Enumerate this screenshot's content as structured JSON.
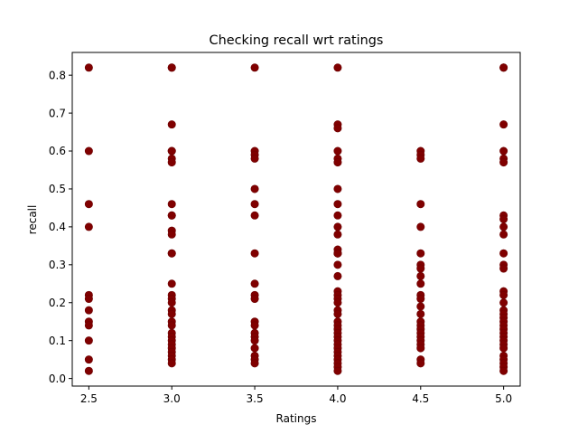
{
  "chart_data": {
    "type": "scatter",
    "title": "Checking recall wrt ratings",
    "xlabel": "Ratings",
    "ylabel": "recall",
    "xlim": [
      2.4,
      5.1
    ],
    "ylim": [
      -0.02,
      0.86
    ],
    "xticks": [
      2.5,
      3.0,
      3.5,
      4.0,
      4.5,
      5.0
    ],
    "xtick_labels": [
      "2.5",
      "3.0",
      "3.5",
      "4.0",
      "4.5",
      "5.0"
    ],
    "yticks": [
      0.0,
      0.1,
      0.2,
      0.3,
      0.4,
      0.5,
      0.6,
      0.7,
      0.8
    ],
    "ytick_labels": [
      "0.0",
      "0.1",
      "0.2",
      "0.3",
      "0.4",
      "0.5",
      "0.6",
      "0.7",
      "0.8"
    ],
    "grid": false,
    "marker_color": "#800000",
    "marker_edge_color": "#6b0000",
    "series": [
      {
        "points": [
          [
            2.5,
            0.82
          ],
          [
            2.5,
            0.6
          ],
          [
            2.5,
            0.46
          ],
          [
            2.5,
            0.4
          ],
          [
            2.5,
            0.22
          ],
          [
            2.5,
            0.21
          ],
          [
            2.5,
            0.18
          ],
          [
            2.5,
            0.15
          ],
          [
            2.5,
            0.14
          ],
          [
            2.5,
            0.1
          ],
          [
            2.5,
            0.05
          ],
          [
            2.5,
            0.02
          ],
          [
            3.0,
            0.82
          ],
          [
            3.0,
            0.82
          ],
          [
            3.0,
            0.67
          ],
          [
            3.0,
            0.6
          ],
          [
            3.0,
            0.6
          ],
          [
            3.0,
            0.58
          ],
          [
            3.0,
            0.57
          ],
          [
            3.0,
            0.46
          ],
          [
            3.0,
            0.43
          ],
          [
            3.0,
            0.43
          ],
          [
            3.0,
            0.39
          ],
          [
            3.0,
            0.38
          ],
          [
            3.0,
            0.33
          ],
          [
            3.0,
            0.33
          ],
          [
            3.0,
            0.25
          ],
          [
            3.0,
            0.22
          ],
          [
            3.0,
            0.21
          ],
          [
            3.0,
            0.2
          ],
          [
            3.0,
            0.18
          ],
          [
            3.0,
            0.17
          ],
          [
            3.0,
            0.15
          ],
          [
            3.0,
            0.14
          ],
          [
            3.0,
            0.12
          ],
          [
            3.0,
            0.11
          ],
          [
            3.0,
            0.1
          ],
          [
            3.0,
            0.09
          ],
          [
            3.0,
            0.08
          ],
          [
            3.0,
            0.07
          ],
          [
            3.0,
            0.06
          ],
          [
            3.0,
            0.05
          ],
          [
            3.0,
            0.04
          ],
          [
            3.5,
            0.82
          ],
          [
            3.5,
            0.6
          ],
          [
            3.5,
            0.59
          ],
          [
            3.5,
            0.58
          ],
          [
            3.5,
            0.5
          ],
          [
            3.5,
            0.46
          ],
          [
            3.5,
            0.43
          ],
          [
            3.5,
            0.33
          ],
          [
            3.5,
            0.25
          ],
          [
            3.5,
            0.22
          ],
          [
            3.5,
            0.21
          ],
          [
            3.5,
            0.15
          ],
          [
            3.5,
            0.14
          ],
          [
            3.5,
            0.12
          ],
          [
            3.5,
            0.11
          ],
          [
            3.5,
            0.1
          ],
          [
            3.5,
            0.08
          ],
          [
            3.5,
            0.06
          ],
          [
            3.5,
            0.05
          ],
          [
            3.5,
            0.04
          ],
          [
            4.0,
            0.82
          ],
          [
            4.0,
            0.67
          ],
          [
            4.0,
            0.66
          ],
          [
            4.0,
            0.6
          ],
          [
            4.0,
            0.58
          ],
          [
            4.0,
            0.57
          ],
          [
            4.0,
            0.5
          ],
          [
            4.0,
            0.46
          ],
          [
            4.0,
            0.43
          ],
          [
            4.0,
            0.4
          ],
          [
            4.0,
            0.38
          ],
          [
            4.0,
            0.34
          ],
          [
            4.0,
            0.33
          ],
          [
            4.0,
            0.33
          ],
          [
            4.0,
            0.33
          ],
          [
            4.0,
            0.3
          ],
          [
            4.0,
            0.27
          ],
          [
            4.0,
            0.23
          ],
          [
            4.0,
            0.22
          ],
          [
            4.0,
            0.21
          ],
          [
            4.0,
            0.2
          ],
          [
            4.0,
            0.18
          ],
          [
            4.0,
            0.17
          ],
          [
            4.0,
            0.15
          ],
          [
            4.0,
            0.14
          ],
          [
            4.0,
            0.13
          ],
          [
            4.0,
            0.12
          ],
          [
            4.0,
            0.11
          ],
          [
            4.0,
            0.1
          ],
          [
            4.0,
            0.09
          ],
          [
            4.0,
            0.08
          ],
          [
            4.0,
            0.07
          ],
          [
            4.0,
            0.06
          ],
          [
            4.0,
            0.05
          ],
          [
            4.0,
            0.04
          ],
          [
            4.0,
            0.03
          ],
          [
            4.0,
            0.02
          ],
          [
            4.5,
            0.6
          ],
          [
            4.5,
            0.59
          ],
          [
            4.5,
            0.58
          ],
          [
            4.5,
            0.46
          ],
          [
            4.5,
            0.4
          ],
          [
            4.5,
            0.33
          ],
          [
            4.5,
            0.3
          ],
          [
            4.5,
            0.29
          ],
          [
            4.5,
            0.27
          ],
          [
            4.5,
            0.25
          ],
          [
            4.5,
            0.22
          ],
          [
            4.5,
            0.21
          ],
          [
            4.5,
            0.19
          ],
          [
            4.5,
            0.17
          ],
          [
            4.5,
            0.15
          ],
          [
            4.5,
            0.14
          ],
          [
            4.5,
            0.13
          ],
          [
            4.5,
            0.12
          ],
          [
            4.5,
            0.11
          ],
          [
            4.5,
            0.1
          ],
          [
            4.5,
            0.09
          ],
          [
            4.5,
            0.08
          ],
          [
            4.5,
            0.05
          ],
          [
            4.5,
            0.04
          ],
          [
            5.0,
            0.82
          ],
          [
            5.0,
            0.82
          ],
          [
            5.0,
            0.67
          ],
          [
            5.0,
            0.6
          ],
          [
            5.0,
            0.58
          ],
          [
            5.0,
            0.57
          ],
          [
            5.0,
            0.43
          ],
          [
            5.0,
            0.42
          ],
          [
            5.0,
            0.4
          ],
          [
            5.0,
            0.38
          ],
          [
            5.0,
            0.33
          ],
          [
            5.0,
            0.3
          ],
          [
            5.0,
            0.29
          ],
          [
            5.0,
            0.23
          ],
          [
            5.0,
            0.22
          ],
          [
            5.0,
            0.2
          ],
          [
            5.0,
            0.18
          ],
          [
            5.0,
            0.17
          ],
          [
            5.0,
            0.16
          ],
          [
            5.0,
            0.15
          ],
          [
            5.0,
            0.14
          ],
          [
            5.0,
            0.13
          ],
          [
            5.0,
            0.12
          ],
          [
            5.0,
            0.11
          ],
          [
            5.0,
            0.1
          ],
          [
            5.0,
            0.09
          ],
          [
            5.0,
            0.08
          ],
          [
            5.0,
            0.06
          ],
          [
            5.0,
            0.05
          ],
          [
            5.0,
            0.04
          ],
          [
            5.0,
            0.03
          ],
          [
            5.0,
            0.02
          ]
        ]
      }
    ]
  }
}
